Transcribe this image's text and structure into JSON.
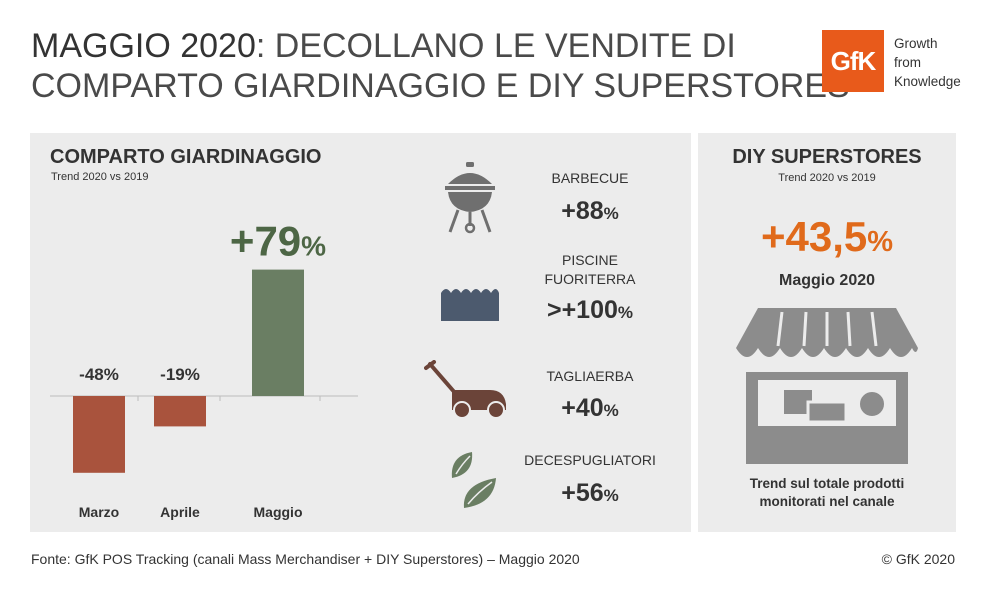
{
  "header": {
    "title_strong": "MAGGIO 2020",
    "title_rest_line1": ": DECOLLANO LE VENDITE DI",
    "title_line2": "COMPARTO GIARDINAGGIO E DIY SUPERSTORES",
    "logo_text": "GfK",
    "tagline": [
      "Growth",
      "from",
      "Knowledge"
    ]
  },
  "garden": {
    "title": "COMPARTO GIARDINAGGIO",
    "subtitle": "Trend 2020 vs 2019"
  },
  "chart_data": {
    "type": "bar",
    "categories": [
      "Marzo",
      "Aprile",
      "Maggio"
    ],
    "values": [
      -48,
      -19,
      79
    ],
    "data_labels": [
      "-48%",
      "-19%",
      "+79"
    ],
    "highlight_suffix": "%",
    "title": "COMPARTO GIARDINAGGIO",
    "subtitle": "Trend 2020 vs 2019",
    "xlabel": "",
    "ylabel": "",
    "ylim": [
      -50,
      80
    ],
    "grid": false,
    "colors": {
      "negative": "#a9533d",
      "positive": "#6a7e63",
      "highlight_label": "#4d6645"
    }
  },
  "products": [
    {
      "label_lines": [
        "BARBECUE"
      ],
      "value": "+88",
      "suffix": "%",
      "icon": "barbecue-grill-icon"
    },
    {
      "label_lines": [
        "PISCINE",
        "FUORITERRA"
      ],
      "value": ">+100",
      "suffix": "%",
      "icon": "pool-water-icon"
    },
    {
      "label_lines": [
        "TAGLIAERBA"
      ],
      "value": "+40",
      "suffix": "%",
      "icon": "lawn-mower-icon"
    },
    {
      "label_lines": [
        "DECESPUGLIATORI"
      ],
      "value": "+56",
      "suffix": "%",
      "icon": "leaves-icon"
    }
  ],
  "diy": {
    "title": "DIY SUPERSTORES",
    "subtitle": "Trend 2020 vs 2019",
    "value": "+43,5",
    "suffix": "%",
    "month": "Maggio 2020",
    "note_lines": [
      "Trend sul totale prodotti",
      "monitorati nel canale"
    ],
    "icon": "storefront-icon"
  },
  "colors": {
    "accent_orange": "#e85a1b",
    "diy_value": "#e06a1b",
    "panel_bg": "#ececec",
    "icon_grey": "#6f6f6f",
    "pool_blue": "#4c5a6e",
    "mower_brown": "#6b4439",
    "leaf_green": "#6a7e63"
  },
  "footer": {
    "source": "Fonte: GfK POS Tracking (canali Mass Merchandiser + DIY Superstores) – Maggio 2020",
    "copyright": "© GfK 2020"
  }
}
